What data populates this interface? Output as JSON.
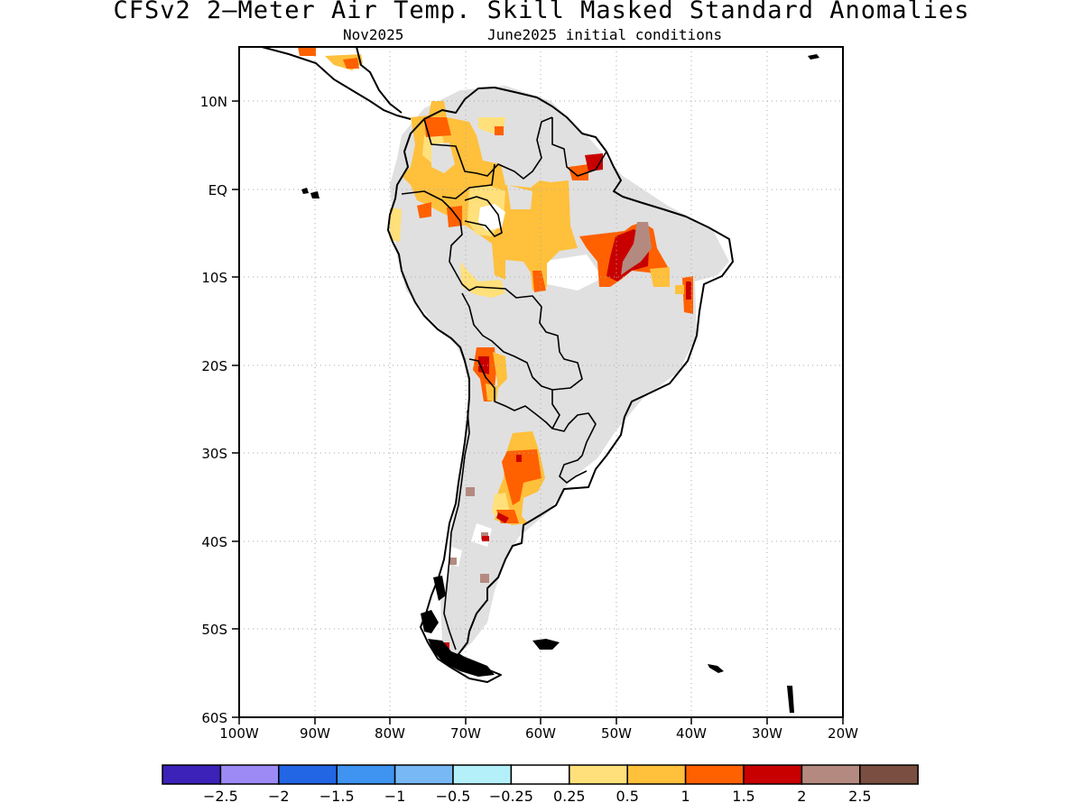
{
  "title": "CFSv2 2—Meter Air Temp. Skill Masked Standard Anomalies",
  "subtitle_left": "Nov2025",
  "subtitle_right": "June2025 initial conditions",
  "lat_labels": [
    "10N",
    "EQ",
    "10S",
    "20S",
    "30S",
    "40S",
    "50S",
    "60S"
  ],
  "lon_labels": [
    "100W",
    "90W",
    "80W",
    "70W",
    "60W",
    "50W",
    "40W",
    "30W",
    "20W"
  ],
  "colorbar": {
    "colors": [
      "#3c22b8",
      "#9e8af5",
      "#2266e6",
      "#3e94f0",
      "#78b8f5",
      "#b4f0fa",
      "#ffffff",
      "#ffe07a",
      "#ffc03c",
      "#ff6000",
      "#c80000",
      "#b48a80",
      "#7a4e40"
    ],
    "labels": [
      "−2.5",
      "−2",
      "−1.5",
      "−1",
      "−0.5",
      "−0.25",
      "0.25",
      "0.5",
      "1",
      "1.5",
      "2",
      "2.5"
    ]
  },
  "map_colors": {
    "skill_mask_gray": "#e0e0e0",
    "yellow": "#ffe07a",
    "light_orange": "#ffc03c",
    "orange": "#ff6000",
    "red": "#c80000",
    "brown_pink": "#b48a80"
  }
}
